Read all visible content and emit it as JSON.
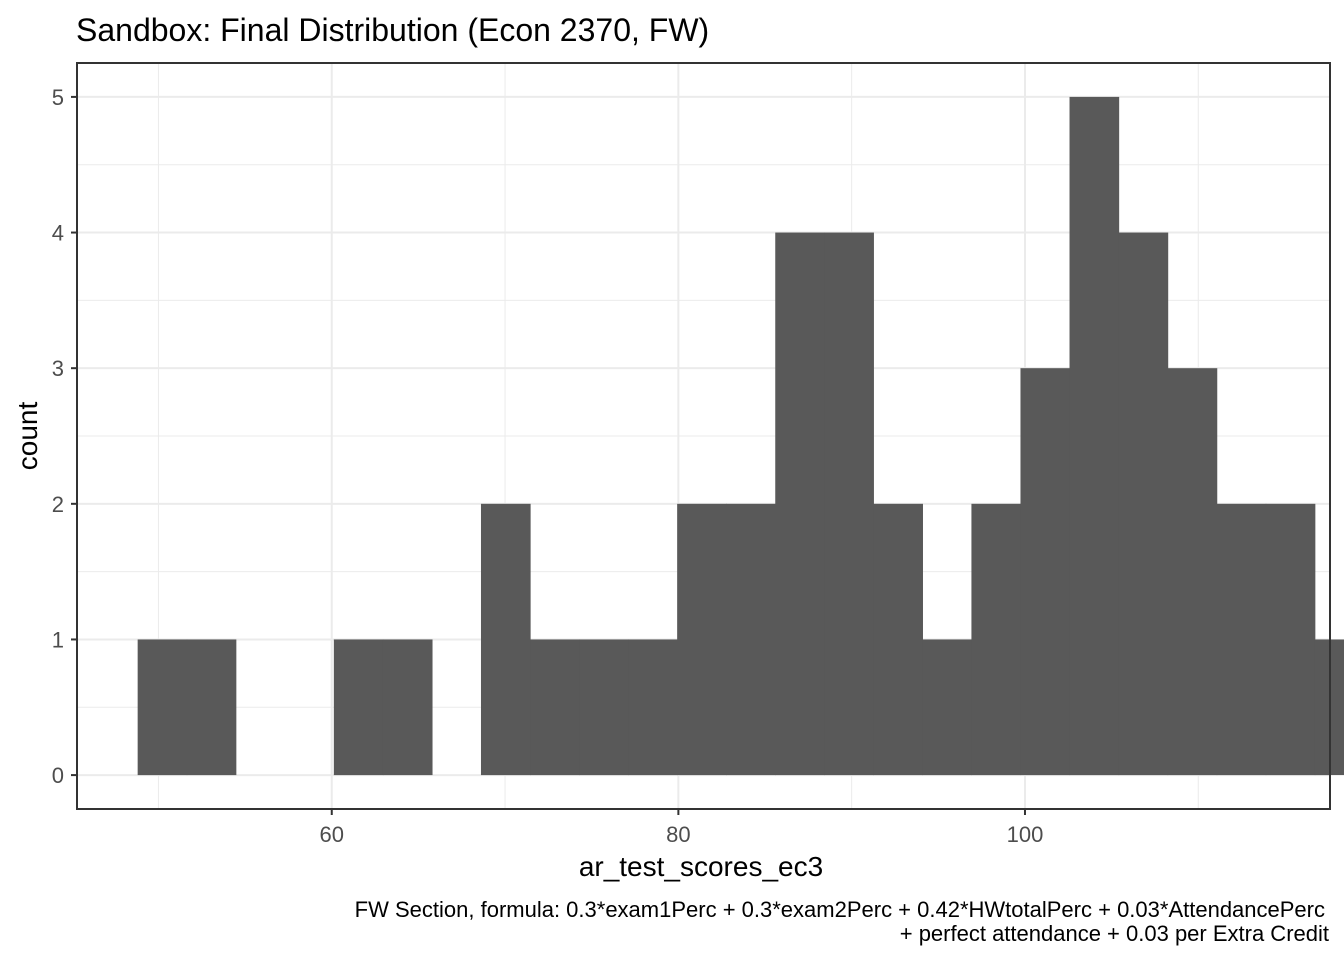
{
  "chart_data": {
    "type": "bar",
    "subtype": "histogram",
    "title": "Sandbox: Final Distribution (Econ 2370, FW)",
    "xlabel": "ar_test_scores_ec3",
    "ylabel": "count",
    "caption_lines": [
      "FW Section, formula: 0.3*exam1Perc + 0.3*exam2Perc + 0.42*HWtotalPerc + 0.03*AttendancePerc",
      "+ perfect attendance + 0.03 per Extra Credit"
    ],
    "xlim": [
      45.3,
      117.6
    ],
    "ylim": [
      -0.25,
      5.25
    ],
    "x_ticks": [
      60,
      80,
      100
    ],
    "y_ticks": [
      0,
      1,
      2,
      3,
      4,
      5
    ],
    "x_minor_ticks": [
      50,
      70,
      90,
      110
    ],
    "y_minor_ticks": [
      0.5,
      1.5,
      2.5,
      3.5,
      4.5
    ],
    "bin_width": 2.83,
    "bins": [
      {
        "xmin": 48.8,
        "xmax": 51.63,
        "count": 1
      },
      {
        "xmin": 51.63,
        "xmax": 54.46,
        "count": 1
      },
      {
        "xmin": 60.12,
        "xmax": 62.95,
        "count": 1
      },
      {
        "xmin": 62.95,
        "xmax": 65.78,
        "count": 1
      },
      {
        "xmin": 68.61,
        "xmax": 71.44,
        "count": 2
      },
      {
        "xmin": 71.44,
        "xmax": 74.27,
        "count": 1
      },
      {
        "xmin": 74.27,
        "xmax": 77.1,
        "count": 1
      },
      {
        "xmin": 77.1,
        "xmax": 79.93,
        "count": 1
      },
      {
        "xmin": 79.93,
        "xmax": 82.76,
        "count": 2
      },
      {
        "xmin": 82.76,
        "xmax": 85.59,
        "count": 2
      },
      {
        "xmin": 85.59,
        "xmax": 88.42,
        "count": 4
      },
      {
        "xmin": 88.42,
        "xmax": 91.25,
        "count": 4
      },
      {
        "xmin": 91.25,
        "xmax": 94.08,
        "count": 2
      },
      {
        "xmin": 94.08,
        "xmax": 96.91,
        "count": 1
      },
      {
        "xmin": 96.91,
        "xmax": 99.74,
        "count": 2
      },
      {
        "xmin": 99.74,
        "xmax": 102.57,
        "count": 3
      },
      {
        "xmin": 102.57,
        "xmax": 105.4,
        "count": 5
      },
      {
        "xmin": 105.4,
        "xmax": 108.23,
        "count": 4
      },
      {
        "xmin": 108.23,
        "xmax": 111.06,
        "count": 3
      },
      {
        "xmin": 111.06,
        "xmax": 113.89,
        "count": 2
      },
      {
        "xmin": 113.89,
        "xmax": 116.72,
        "count": 2
      },
      {
        "xmin": 116.72,
        "xmax": 119.55,
        "count": 1
      }
    ],
    "bar_color": "#595959",
    "background": "#ffffff",
    "grid": true,
    "legend": "none",
    "theme": "bw"
  }
}
